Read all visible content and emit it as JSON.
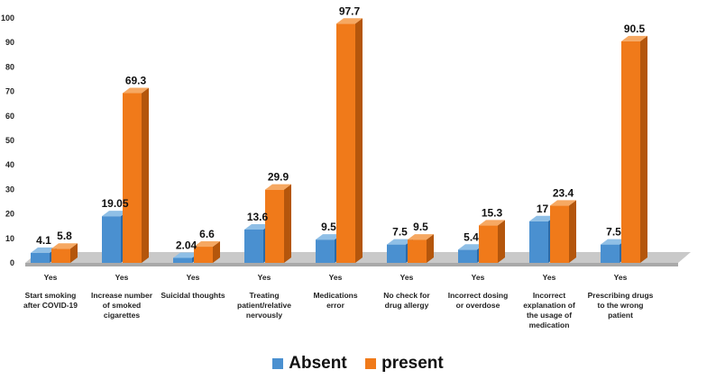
{
  "chart_data": {
    "type": "bar",
    "ylim": [
      0,
      100
    ],
    "yticks": [
      0,
      10,
      20,
      30,
      40,
      50,
      60,
      70,
      80,
      90,
      100
    ],
    "group_label": "Yes",
    "categories": [
      [
        "Start smoking",
        "after COVID-19"
      ],
      [
        "Increase number",
        "of smoked",
        "cigarettes"
      ],
      [
        "Suicidal thoughts"
      ],
      [
        "Treating",
        "patient/relative",
        "nervously"
      ],
      [
        "Medications",
        "error"
      ],
      [
        "No check for",
        "drug allergy"
      ],
      [
        "Incorrect dosing",
        "or overdose"
      ],
      [
        "Incorrect",
        "explanation of",
        "the usage of",
        "medication"
      ],
      [
        "Prescribing drugs",
        "to the wrong",
        "patient"
      ]
    ],
    "series": [
      {
        "name": "Absent",
        "color": "#4a90d0",
        "side": "#2c6aa6",
        "top": "#8fbfe6",
        "values": [
          4.1,
          19.05,
          2.04,
          13.6,
          9.5,
          7.5,
          5.4,
          17,
          7.5
        ],
        "labels": [
          "4.1",
          "19.05",
          "2.04",
          "13.6",
          "9.5",
          "7.5",
          "5.4",
          "17",
          "7.5"
        ]
      },
      {
        "name": "present",
        "color": "#f07a1a",
        "side": "#b4560c",
        "top": "#f6a862",
        "values": [
          5.8,
          69.3,
          6.6,
          29.9,
          97.7,
          9.5,
          15.3,
          23.4,
          90.5
        ],
        "labels": [
          "5.8",
          "69.3",
          "6.6",
          "29.9",
          "97.7",
          "9.5",
          "15.3",
          "23.4",
          "90.5"
        ]
      }
    ],
    "legend_position": "bottom"
  }
}
